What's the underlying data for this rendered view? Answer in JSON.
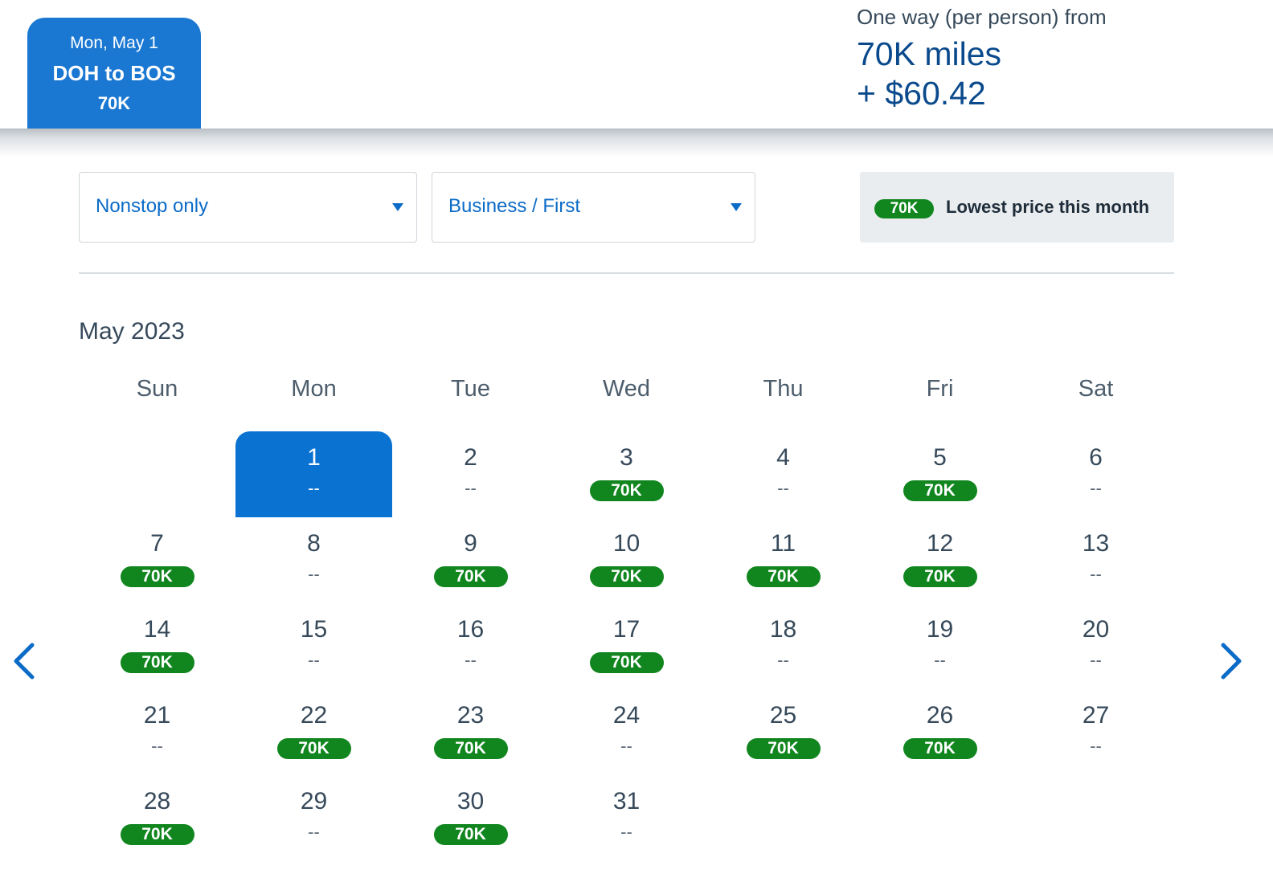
{
  "header": {
    "selected_date": "Mon, May 1",
    "route": "DOH to BOS",
    "route_price": "70K",
    "fare_label": "One way (per person) from",
    "fare_miles": "70K miles",
    "fare_cash": "+ $60.42"
  },
  "filters": {
    "stops": "Nonstop only",
    "cabin": "Business / First"
  },
  "legend": {
    "badge": "70K",
    "text": "Lowest price this month"
  },
  "calendar": {
    "month": "May 2023",
    "weekdays": [
      "Sun",
      "Mon",
      "Tue",
      "Wed",
      "Thu",
      "Fri",
      "Sat"
    ],
    "first_weekday_index": 1,
    "selected_day": 1,
    "days": [
      {
        "day": "1",
        "price": "--"
      },
      {
        "day": "2",
        "price": "--"
      },
      {
        "day": "3",
        "price": "70K"
      },
      {
        "day": "4",
        "price": "--"
      },
      {
        "day": "5",
        "price": "70K"
      },
      {
        "day": "6",
        "price": "--"
      },
      {
        "day": "7",
        "price": "70K"
      },
      {
        "day": "8",
        "price": "--"
      },
      {
        "day": "9",
        "price": "70K"
      },
      {
        "day": "10",
        "price": "70K"
      },
      {
        "day": "11",
        "price": "70K"
      },
      {
        "day": "12",
        "price": "70K"
      },
      {
        "day": "13",
        "price": "--"
      },
      {
        "day": "14",
        "price": "70K"
      },
      {
        "day": "15",
        "price": "--"
      },
      {
        "day": "16",
        "price": "--"
      },
      {
        "day": "17",
        "price": "70K"
      },
      {
        "day": "18",
        "price": "--"
      },
      {
        "day": "19",
        "price": "--"
      },
      {
        "day": "20",
        "price": "--"
      },
      {
        "day": "21",
        "price": "--"
      },
      {
        "day": "22",
        "price": "70K"
      },
      {
        "day": "23",
        "price": "70K"
      },
      {
        "day": "24",
        "price": "--"
      },
      {
        "day": "25",
        "price": "70K"
      },
      {
        "day": "26",
        "price": "70K"
      },
      {
        "day": "27",
        "price": "--"
      },
      {
        "day": "28",
        "price": "70K"
      },
      {
        "day": "29",
        "price": "--"
      },
      {
        "day": "30",
        "price": "70K"
      },
      {
        "day": "31",
        "price": "--"
      }
    ]
  },
  "colors": {
    "accent_blue": "#0a73d2",
    "price_green": "#11861f"
  },
  "icons": {
    "prev": "chevron-left-icon",
    "next": "chevron-right-icon"
  }
}
